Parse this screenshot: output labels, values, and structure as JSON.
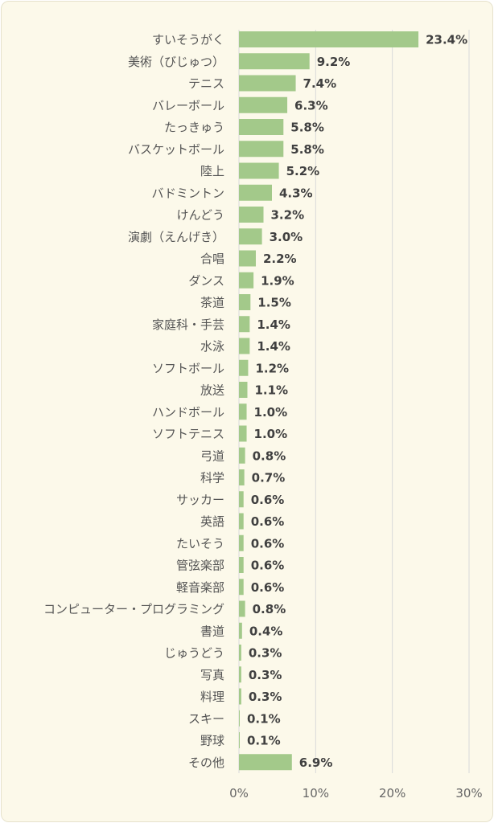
{
  "chart_data": {
    "type": "bar",
    "orientation": "horizontal",
    "categories": [
      "すいそうがく",
      "美術（びじゅつ）",
      "テニス",
      "バレーボール",
      "たっきゅう",
      "バスケットボール",
      "陸上",
      "バドミントン",
      "けんどう",
      "演劇（えんげき）",
      "合唱",
      "ダンス",
      "茶道",
      "家庭科・手芸",
      "水泳",
      "ソフトボール",
      "放送",
      "ハンドボール",
      "ソフトテニス",
      "弓道",
      "科学",
      "サッカー",
      "英語",
      "たいそう",
      "管弦楽部",
      "軽音楽部",
      "コンピューター・プログラミング",
      "書道",
      "じゅうどう",
      "写真",
      "料理",
      "スキー",
      "野球",
      "その他"
    ],
    "values": [
      23.4,
      9.2,
      7.4,
      6.3,
      5.8,
      5.8,
      5.2,
      4.3,
      3.2,
      3.0,
      2.2,
      1.9,
      1.5,
      1.4,
      1.4,
      1.2,
      1.1,
      1.0,
      1.0,
      0.8,
      0.7,
      0.6,
      0.6,
      0.6,
      0.6,
      0.6,
      0.8,
      0.4,
      0.3,
      0.3,
      0.3,
      0.1,
      0.1,
      6.9
    ],
    "value_labels": [
      "23.4%",
      "9.2%",
      "7.4%",
      "6.3%",
      "5.8%",
      "5.8%",
      "5.2%",
      "4.3%",
      "3.2%",
      "3.0%",
      "2.2%",
      "1.9%",
      "1.5%",
      "1.4%",
      "1.4%",
      "1.2%",
      "1.1%",
      "1.0%",
      "1.0%",
      "0.8%",
      "0.7%",
      "0.6%",
      "0.6%",
      "0.6%",
      "0.6%",
      "0.6%",
      "0.8%",
      "0.4%",
      "0.3%",
      "0.3%",
      "0.3%",
      "0.1%",
      "0.1%",
      "6.9%"
    ],
    "xlim": [
      0,
      30
    ],
    "x_ticks": [
      0,
      10,
      20,
      30
    ],
    "x_tick_labels": [
      "0%",
      "10%",
      "20%",
      "30%"
    ],
    "grid": "vertical",
    "bar_color": "#a3c98a",
    "grid_color": "#d9d9d9",
    "background_color": "#fcf9ea",
    "title": "",
    "xlabel": "",
    "ylabel": ""
  }
}
